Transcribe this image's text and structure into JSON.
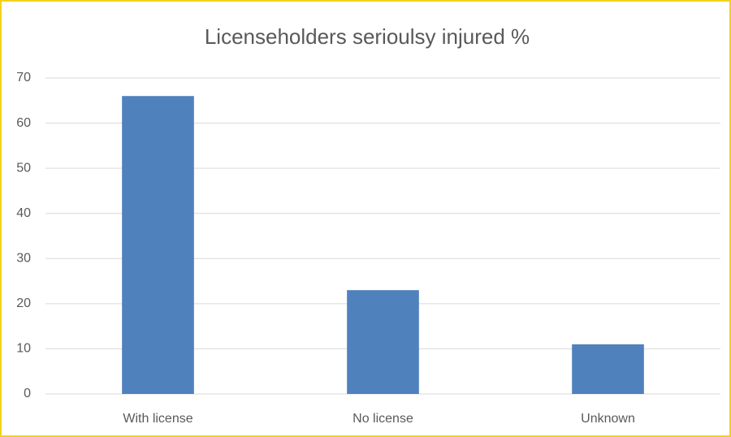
{
  "chart_data": {
    "type": "bar",
    "title": "Licenseholders serioulsy injured %",
    "categories": [
      "With license",
      "No license",
      "Unknown"
    ],
    "values": [
      66,
      23,
      11
    ],
    "color": "#4f81bd",
    "ylim": [
      0,
      70
    ],
    "yticks": [
      0,
      10,
      20,
      30,
      40,
      50,
      60,
      70
    ],
    "grid": true
  }
}
